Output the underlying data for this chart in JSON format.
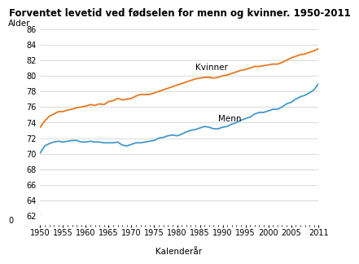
{
  "title": "Forventet levetid ved fødselen for menn og kvinner. 1950-2011",
  "ylabel": "Alder",
  "xlabel": "Kalenderår",
  "years": [
    1950,
    1951,
    1952,
    1953,
    1954,
    1955,
    1956,
    1957,
    1958,
    1959,
    1960,
    1961,
    1962,
    1963,
    1964,
    1965,
    1966,
    1967,
    1968,
    1969,
    1970,
    1971,
    1972,
    1973,
    1974,
    1975,
    1976,
    1977,
    1978,
    1979,
    1980,
    1981,
    1982,
    1983,
    1984,
    1985,
    1986,
    1987,
    1988,
    1989,
    1990,
    1991,
    1992,
    1993,
    1994,
    1995,
    1996,
    1997,
    1998,
    1999,
    2000,
    2001,
    2002,
    2003,
    2004,
    2005,
    2006,
    2007,
    2008,
    2009,
    2010,
    2011
  ],
  "kvinner": [
    73.4,
    74.2,
    74.8,
    75.1,
    75.4,
    75.4,
    75.6,
    75.7,
    75.9,
    76.0,
    76.1,
    76.3,
    76.2,
    76.4,
    76.3,
    76.7,
    76.8,
    77.1,
    76.9,
    77.0,
    77.1,
    77.4,
    77.6,
    77.6,
    77.6,
    77.8,
    78.0,
    78.2,
    78.4,
    78.6,
    78.8,
    79.0,
    79.2,
    79.4,
    79.6,
    79.7,
    79.8,
    79.8,
    79.7,
    79.8,
    80.0,
    80.1,
    80.3,
    80.5,
    80.7,
    80.8,
    81.0,
    81.2,
    81.2,
    81.3,
    81.4,
    81.5,
    81.5,
    81.7,
    82.0,
    82.3,
    82.5,
    82.7,
    82.8,
    83.0,
    83.2,
    83.5
  ],
  "menn": [
    70.1,
    71.0,
    71.3,
    71.5,
    71.6,
    71.5,
    71.6,
    71.7,
    71.7,
    71.5,
    71.5,
    71.6,
    71.5,
    71.5,
    71.4,
    71.4,
    71.4,
    71.5,
    71.1,
    71.0,
    71.2,
    71.4,
    71.4,
    71.5,
    71.6,
    71.7,
    72.0,
    72.1,
    72.3,
    72.4,
    72.3,
    72.5,
    72.8,
    73.0,
    73.1,
    73.3,
    73.5,
    73.4,
    73.2,
    73.2,
    73.4,
    73.5,
    73.8,
    74.0,
    74.3,
    74.5,
    74.7,
    75.1,
    75.3,
    75.3,
    75.5,
    75.7,
    75.7,
    76.0,
    76.4,
    76.6,
    77.0,
    77.3,
    77.5,
    77.8,
    78.2,
    79.0
  ],
  "kvinner_color": "#e8781e",
  "menn_color": "#4499cc",
  "ylim_bottom": 62,
  "ylim_top": 86,
  "xlim_left": 1950,
  "xlim_right": 2011,
  "yticks": [
    62,
    64,
    66,
    68,
    70,
    72,
    74,
    76,
    78,
    80,
    82,
    84,
    86
  ],
  "xticks": [
    1950,
    1955,
    1960,
    1965,
    1970,
    1975,
    1980,
    1985,
    1990,
    1995,
    2000,
    2005,
    2011
  ],
  "kvinner_label": "Kvinner",
  "menn_label": "Menn",
  "kvinner_ann_x": 1984,
  "kvinner_ann_y": 80.8,
  "menn_ann_x": 1989,
  "menn_ann_y": 74.2,
  "background_color": "#ffffff",
  "grid_color": "#cccccc",
  "line_width": 1.3,
  "title_fontsize": 8.5,
  "axis_label_fontsize": 7.5,
  "tick_fontsize": 7
}
